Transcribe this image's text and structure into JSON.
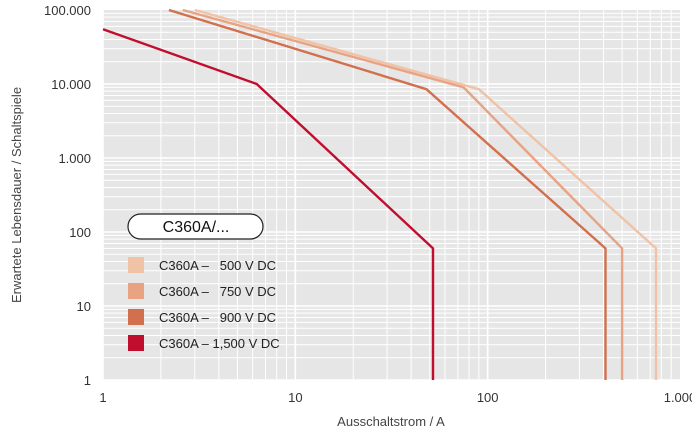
{
  "chart_data": {
    "type": "line",
    "xscale": "log",
    "yscale": "log",
    "xlim": [
      1,
      1000
    ],
    "ylim": [
      1,
      100000
    ],
    "xlabel": "Ausschaltstrom / A",
    "ylabel": "Erwartete Lebensdauer / Schaltspiele",
    "x_ticks": [
      {
        "value": 1,
        "label": "1"
      },
      {
        "value": 10,
        "label": "10"
      },
      {
        "value": 100,
        "label": "100"
      },
      {
        "value": 1000,
        "label": "1.000"
      }
    ],
    "y_ticks": [
      {
        "value": 1,
        "label": "1"
      },
      {
        "value": 10,
        "label": "10"
      },
      {
        "value": 100,
        "label": "100"
      },
      {
        "value": 1000,
        "label": "1.000"
      },
      {
        "value": 10000,
        "label": "10.000"
      },
      {
        "value": 100000,
        "label": "100.000"
      }
    ],
    "grid": true,
    "legend_position": "bottom-left",
    "badge_label": "C360A/...",
    "series": [
      {
        "name": "C360A –   500 V DC",
        "color": "#f0c2a6",
        "points": [
          [
            3.0,
            100000
          ],
          [
            90,
            8500
          ],
          [
            750,
            60
          ],
          [
            750,
            1
          ]
        ]
      },
      {
        "name": "C360A –   750 V DC",
        "color": "#e8a383",
        "points": [
          [
            2.6,
            100000
          ],
          [
            75,
            9000
          ],
          [
            500,
            60
          ],
          [
            500,
            1
          ]
        ]
      },
      {
        "name": "C360A –   900 V DC",
        "color": "#d2704e",
        "points": [
          [
            2.2,
            100000
          ],
          [
            48,
            8500
          ],
          [
            410,
            60
          ],
          [
            410,
            1
          ]
        ]
      },
      {
        "name": "C360A – 1,500 V DC",
        "color": "#c10d2e",
        "points": [
          [
            1,
            55000
          ],
          [
            6.3,
            10000
          ],
          [
            52,
            60
          ],
          [
            52,
            1
          ]
        ]
      }
    ]
  }
}
